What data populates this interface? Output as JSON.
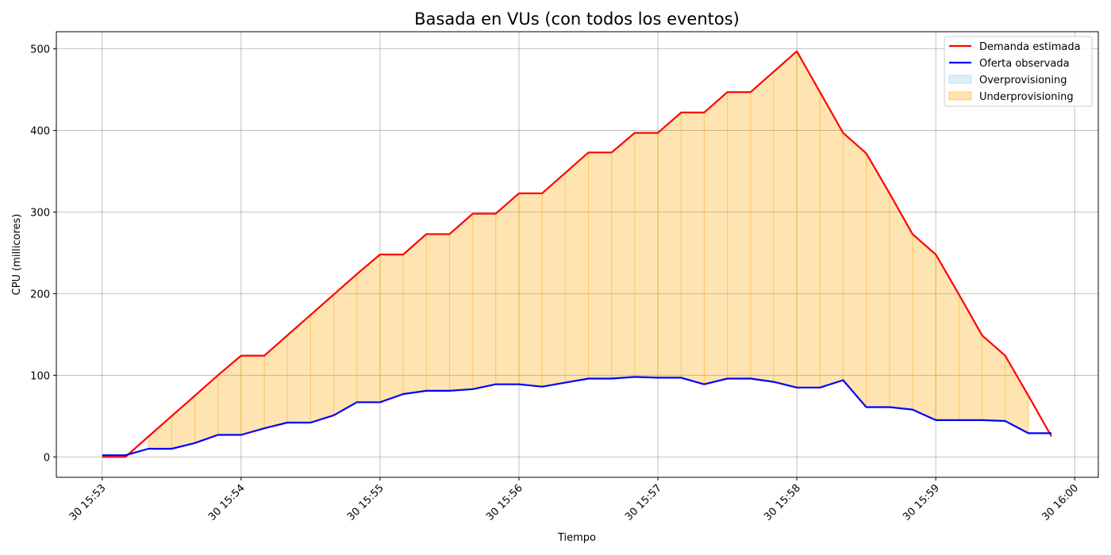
{
  "chart_data": {
    "type": "line",
    "title": "Basada en VUs (con todos los eventos)",
    "xlabel": "Tiempo",
    "ylabel": "CPU (millicores)",
    "x_tick_labels": [
      "30 15:53",
      "30 15:54",
      "30 15:55",
      "30 15:56",
      "30 15:57",
      "30 15:58",
      "30 15:59",
      "30 16:00"
    ],
    "x_ticks_minutes": [
      0,
      1,
      2,
      3,
      4,
      5,
      6,
      7
    ],
    "x_unit": "minutes after 30 15:53",
    "xlim": [
      -0.33,
      7.17
    ],
    "ylim": [
      -25,
      521
    ],
    "y_ticks": [
      0,
      100,
      200,
      300,
      400,
      500
    ],
    "grid": true,
    "legend_position": "top-right",
    "x": [
      0,
      0.167,
      0.333,
      0.5,
      0.667,
      0.833,
      1.0,
      1.167,
      1.333,
      1.5,
      1.667,
      1.833,
      2.0,
      2.167,
      2.333,
      2.5,
      2.667,
      2.833,
      3.0,
      3.167,
      3.333,
      3.5,
      3.667,
      3.833,
      4.0,
      4.167,
      4.333,
      4.5,
      4.667,
      4.833,
      5.0,
      5.167,
      5.333,
      5.5,
      5.667,
      5.833,
      6.0,
      6.167,
      6.333,
      6.5,
      6.667,
      6.833
    ],
    "series": [
      {
        "name": "Demanda estimada",
        "color": "#ff0000",
        "values": [
          0,
          0,
          25,
          50,
          75,
          100,
          124,
          124,
          149,
          174,
          199,
          224,
          248,
          248,
          273,
          273,
          298,
          298,
          323,
          323,
          348,
          373,
          373,
          397,
          397,
          422,
          422,
          447,
          447,
          472,
          497,
          447,
          397,
          372,
          323,
          273,
          248,
          199,
          149,
          124,
          75,
          25
        ]
      },
      {
        "name": "Oferta observada",
        "color": "#0000ff",
        "values": [
          2,
          2,
          10,
          10,
          17,
          27,
          27,
          35,
          42,
          42,
          51,
          67,
          67,
          77,
          81,
          81,
          83,
          89,
          89,
          86,
          91,
          96,
          96,
          98,
          97,
          97,
          89,
          96,
          96,
          92,
          85,
          85,
          94,
          61,
          61,
          58,
          45,
          45,
          45,
          44,
          29,
          29
        ]
      }
    ],
    "fills": [
      {
        "name": "Overprovisioning",
        "color": "#87ceeb",
        "opacity": 0.3
      },
      {
        "name": "Underprovisioning",
        "color": "#ffa500",
        "opacity": 0.3
      }
    ]
  }
}
